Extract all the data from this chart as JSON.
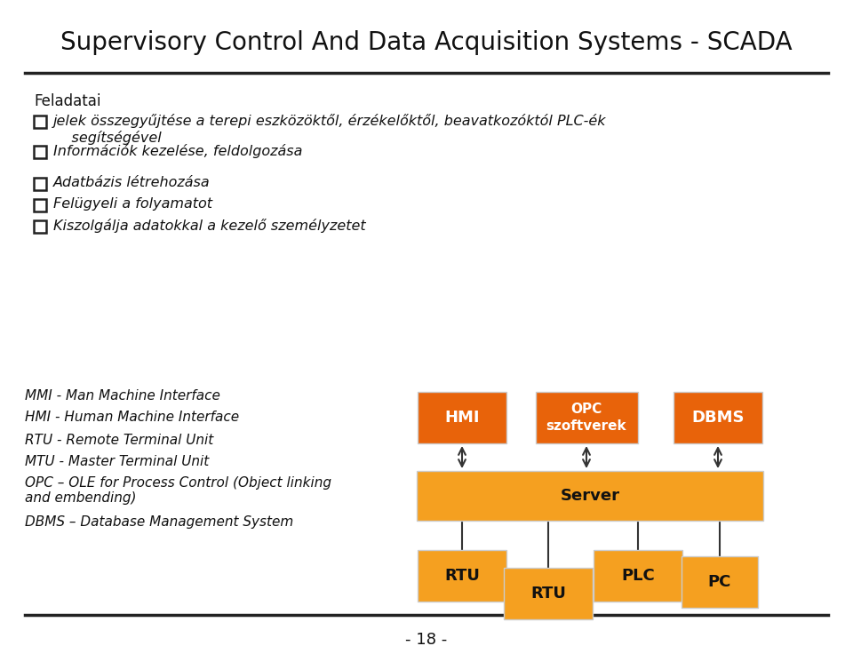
{
  "title": "Supervisory Control And Data Acquisition Systems - SCADA",
  "title_fontsize": 20,
  "background_color": "#ffffff",
  "feladatai_label": "Feladatai",
  "bullet_items": [
    "jelek összegyűjtése a terepi eszközöktől, érzékelőktől, beavatkozóktól PLC-ék\n    segítségével",
    "Információk kezelése, feldolgozása",
    "Adatbázis létrehozása",
    "Felügyeli a folyamatot",
    "Kiszolgálja adatokkal a kezelő személyzetet"
  ],
  "legend_items": [
    "MMI - Man Machine Interface",
    "HMI - Human Machine Interface",
    "RTU - Remote Terminal Unit",
    "MTU - Master Terminal Unit",
    "OPC – OLE for Process Control (Object linking\nand embending)",
    "DBMS – Database Management System"
  ],
  "dark_orange": "#E8630A",
  "light_orange": "#F5A020",
  "page_number": "- 18 -"
}
